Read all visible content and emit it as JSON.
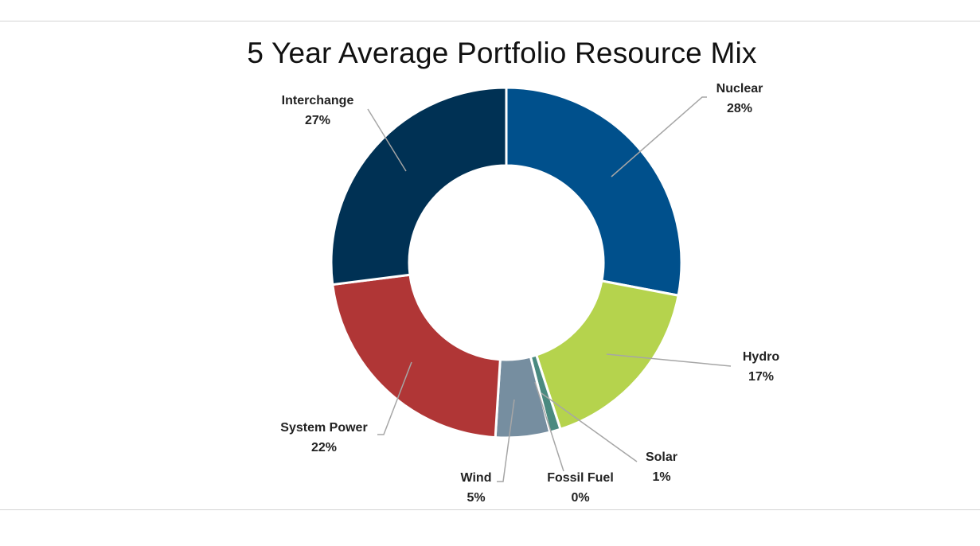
{
  "chart_data": {
    "type": "pie",
    "subtype": "donut",
    "title": "5 Year Average Portfolio Resource Mix",
    "start": "top, clockwise",
    "slices": [
      {
        "name": "Nuclear",
        "value": 28,
        "label": "28%",
        "color": "#00508c"
      },
      {
        "name": "Hydro",
        "value": 17,
        "label": "17%",
        "color": "#b5d34d"
      },
      {
        "name": "Solar",
        "value": 1,
        "label": "1%",
        "color": "#4a8a80"
      },
      {
        "name": "Fossil Fuel",
        "value": 0,
        "label": "0%",
        "color": "#8a8a8a"
      },
      {
        "name": "Wind",
        "value": 5,
        "label": "5%",
        "color": "#768ea0"
      },
      {
        "name": "System Power",
        "value": 22,
        "label": "22%",
        "color": "#b03636"
      },
      {
        "name": "Interchange",
        "value": 27,
        "label": "27%",
        "color": "#003154"
      }
    ]
  }
}
